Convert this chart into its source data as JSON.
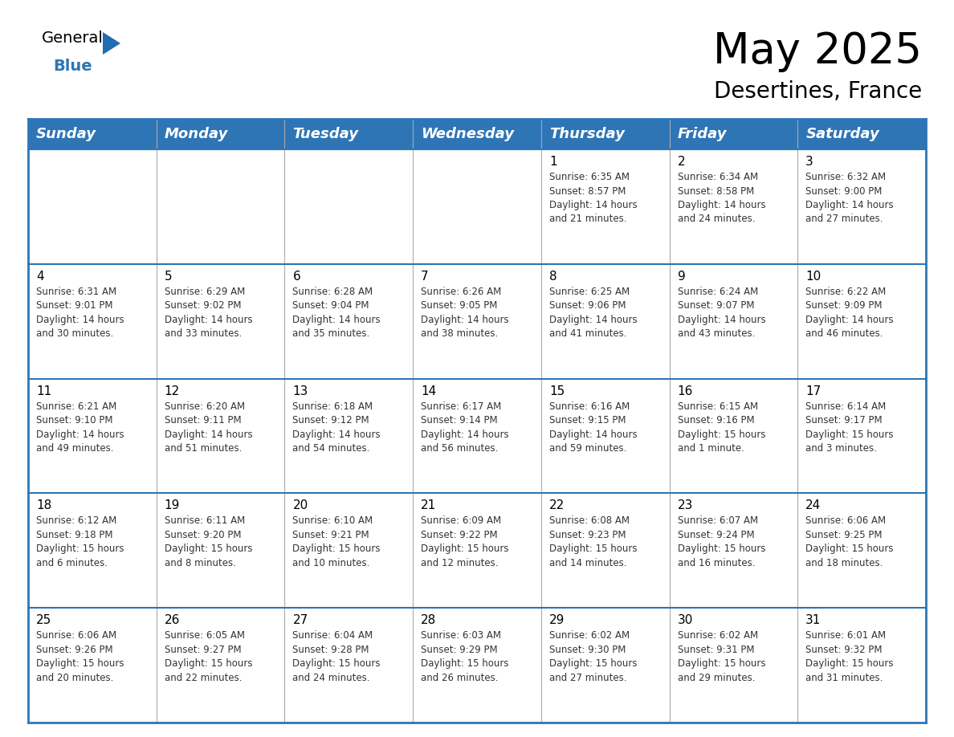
{
  "title": "May 2025",
  "subtitle": "Desertines, France",
  "header_color": "#2E75B6",
  "header_text_color": "#FFFFFF",
  "cell_bg_color": "#FFFFFF",
  "border_color": "#2E75B6",
  "text_color": "#333333",
  "days_of_week": [
    "Sunday",
    "Monday",
    "Tuesday",
    "Wednesday",
    "Thursday",
    "Friday",
    "Saturday"
  ],
  "title_fontsize": 38,
  "subtitle_fontsize": 20,
  "header_fontsize": 13,
  "cell_fontsize": 8.5,
  "day_num_fontsize": 11,
  "logo_general_fontsize": 14,
  "logo_blue_fontsize": 14,
  "calendar": [
    [
      {
        "day": "",
        "info": ""
      },
      {
        "day": "",
        "info": ""
      },
      {
        "day": "",
        "info": ""
      },
      {
        "day": "",
        "info": ""
      },
      {
        "day": "1",
        "info": "Sunrise: 6:35 AM\nSunset: 8:57 PM\nDaylight: 14 hours\nand 21 minutes."
      },
      {
        "day": "2",
        "info": "Sunrise: 6:34 AM\nSunset: 8:58 PM\nDaylight: 14 hours\nand 24 minutes."
      },
      {
        "day": "3",
        "info": "Sunrise: 6:32 AM\nSunset: 9:00 PM\nDaylight: 14 hours\nand 27 minutes."
      }
    ],
    [
      {
        "day": "4",
        "info": "Sunrise: 6:31 AM\nSunset: 9:01 PM\nDaylight: 14 hours\nand 30 minutes."
      },
      {
        "day": "5",
        "info": "Sunrise: 6:29 AM\nSunset: 9:02 PM\nDaylight: 14 hours\nand 33 minutes."
      },
      {
        "day": "6",
        "info": "Sunrise: 6:28 AM\nSunset: 9:04 PM\nDaylight: 14 hours\nand 35 minutes."
      },
      {
        "day": "7",
        "info": "Sunrise: 6:26 AM\nSunset: 9:05 PM\nDaylight: 14 hours\nand 38 minutes."
      },
      {
        "day": "8",
        "info": "Sunrise: 6:25 AM\nSunset: 9:06 PM\nDaylight: 14 hours\nand 41 minutes."
      },
      {
        "day": "9",
        "info": "Sunrise: 6:24 AM\nSunset: 9:07 PM\nDaylight: 14 hours\nand 43 minutes."
      },
      {
        "day": "10",
        "info": "Sunrise: 6:22 AM\nSunset: 9:09 PM\nDaylight: 14 hours\nand 46 minutes."
      }
    ],
    [
      {
        "day": "11",
        "info": "Sunrise: 6:21 AM\nSunset: 9:10 PM\nDaylight: 14 hours\nand 49 minutes."
      },
      {
        "day": "12",
        "info": "Sunrise: 6:20 AM\nSunset: 9:11 PM\nDaylight: 14 hours\nand 51 minutes."
      },
      {
        "day": "13",
        "info": "Sunrise: 6:18 AM\nSunset: 9:12 PM\nDaylight: 14 hours\nand 54 minutes."
      },
      {
        "day": "14",
        "info": "Sunrise: 6:17 AM\nSunset: 9:14 PM\nDaylight: 14 hours\nand 56 minutes."
      },
      {
        "day": "15",
        "info": "Sunrise: 6:16 AM\nSunset: 9:15 PM\nDaylight: 14 hours\nand 59 minutes."
      },
      {
        "day": "16",
        "info": "Sunrise: 6:15 AM\nSunset: 9:16 PM\nDaylight: 15 hours\nand 1 minute."
      },
      {
        "day": "17",
        "info": "Sunrise: 6:14 AM\nSunset: 9:17 PM\nDaylight: 15 hours\nand 3 minutes."
      }
    ],
    [
      {
        "day": "18",
        "info": "Sunrise: 6:12 AM\nSunset: 9:18 PM\nDaylight: 15 hours\nand 6 minutes."
      },
      {
        "day": "19",
        "info": "Sunrise: 6:11 AM\nSunset: 9:20 PM\nDaylight: 15 hours\nand 8 minutes."
      },
      {
        "day": "20",
        "info": "Sunrise: 6:10 AM\nSunset: 9:21 PM\nDaylight: 15 hours\nand 10 minutes."
      },
      {
        "day": "21",
        "info": "Sunrise: 6:09 AM\nSunset: 9:22 PM\nDaylight: 15 hours\nand 12 minutes."
      },
      {
        "day": "22",
        "info": "Sunrise: 6:08 AM\nSunset: 9:23 PM\nDaylight: 15 hours\nand 14 minutes."
      },
      {
        "day": "23",
        "info": "Sunrise: 6:07 AM\nSunset: 9:24 PM\nDaylight: 15 hours\nand 16 minutes."
      },
      {
        "day": "24",
        "info": "Sunrise: 6:06 AM\nSunset: 9:25 PM\nDaylight: 15 hours\nand 18 minutes."
      }
    ],
    [
      {
        "day": "25",
        "info": "Sunrise: 6:06 AM\nSunset: 9:26 PM\nDaylight: 15 hours\nand 20 minutes."
      },
      {
        "day": "26",
        "info": "Sunrise: 6:05 AM\nSunset: 9:27 PM\nDaylight: 15 hours\nand 22 minutes."
      },
      {
        "day": "27",
        "info": "Sunrise: 6:04 AM\nSunset: 9:28 PM\nDaylight: 15 hours\nand 24 minutes."
      },
      {
        "day": "28",
        "info": "Sunrise: 6:03 AM\nSunset: 9:29 PM\nDaylight: 15 hours\nand 26 minutes."
      },
      {
        "day": "29",
        "info": "Sunrise: 6:02 AM\nSunset: 9:30 PM\nDaylight: 15 hours\nand 27 minutes."
      },
      {
        "day": "30",
        "info": "Sunrise: 6:02 AM\nSunset: 9:31 PM\nDaylight: 15 hours\nand 29 minutes."
      },
      {
        "day": "31",
        "info": "Sunrise: 6:01 AM\nSunset: 9:32 PM\nDaylight: 15 hours\nand 31 minutes."
      }
    ]
  ]
}
